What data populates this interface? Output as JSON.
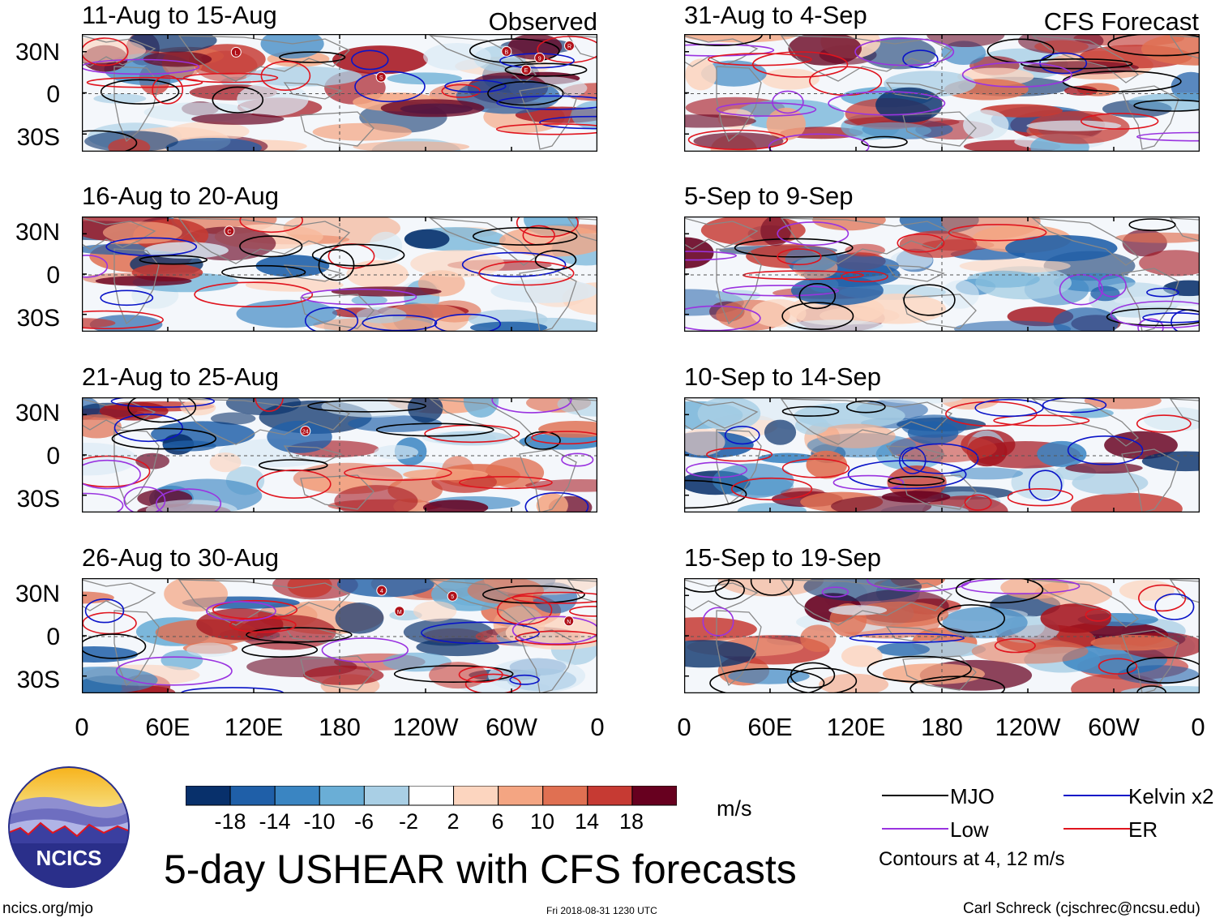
{
  "panels_left_header": "Observed",
  "panels_right_header": "CFS Forecast",
  "panels": [
    {
      "title": "11-Aug to 15-Aug",
      "storms": [
        "E",
        "B",
        "R",
        "L",
        "S",
        "9"
      ]
    },
    {
      "title": "16-Aug to 20-Aug",
      "storms": [
        "C"
      ]
    },
    {
      "title": "21-Aug to 25-Aug",
      "storms": [
        "24"
      ]
    },
    {
      "title": "26-Aug to 30-Aug",
      "storms": [
        "4",
        "M",
        "N",
        "5"
      ]
    },
    {
      "title": "31-Aug to 4-Sep",
      "storms": []
    },
    {
      "title": "5-Sep to 9-Sep",
      "storms": []
    },
    {
      "title": "10-Sep to 14-Sep",
      "storms": []
    },
    {
      "title": "15-Sep to 19-Sep",
      "storms": []
    }
  ],
  "lat_ticks": [
    "30N",
    "0",
    "30S"
  ],
  "lon_ticks": [
    "0",
    "60E",
    "120E",
    "180",
    "120W",
    "60W",
    "0"
  ],
  "colorbar": {
    "labels": [
      "-18",
      "-14",
      "-10",
      "-6",
      "-2",
      "2",
      "6",
      "10",
      "14",
      "18"
    ],
    "colors": [
      "#08306b",
      "#1f5fa8",
      "#3a85c2",
      "#6aaed6",
      "#a9cfe5",
      "#d9e9f4",
      "#ffffff",
      "#fcd5bf",
      "#f4a582",
      "#e07052",
      "#c63a33",
      "#a5141e",
      "#67001f"
    ],
    "units": "m/s"
  },
  "legend": {
    "items": [
      {
        "label": "MJO",
        "color": "#000000"
      },
      {
        "label": "Kelvin x2",
        "color": "#0a14c8"
      },
      {
        "label": "Low",
        "color": "#9a33e0"
      },
      {
        "label": "ER",
        "color": "#e0141e"
      }
    ],
    "note": "Contours at 4, 12 m/s"
  },
  "logo_text": "NCICS",
  "main_title": "5-day USHEAR with CFS forecasts",
  "footer": {
    "url": "ncics.org/mjo",
    "timestamp": "Fri 2018-08-31 1230 UTC",
    "credit": "Carl Schreck (cjschrec@ncsu.edu)"
  },
  "colors": {
    "land_outline": "#888888",
    "reference_line": "#555555",
    "mjo": "#000000",
    "kelvin": "#0a14c8",
    "low": "#9a33e0",
    "er": "#e0141e"
  }
}
